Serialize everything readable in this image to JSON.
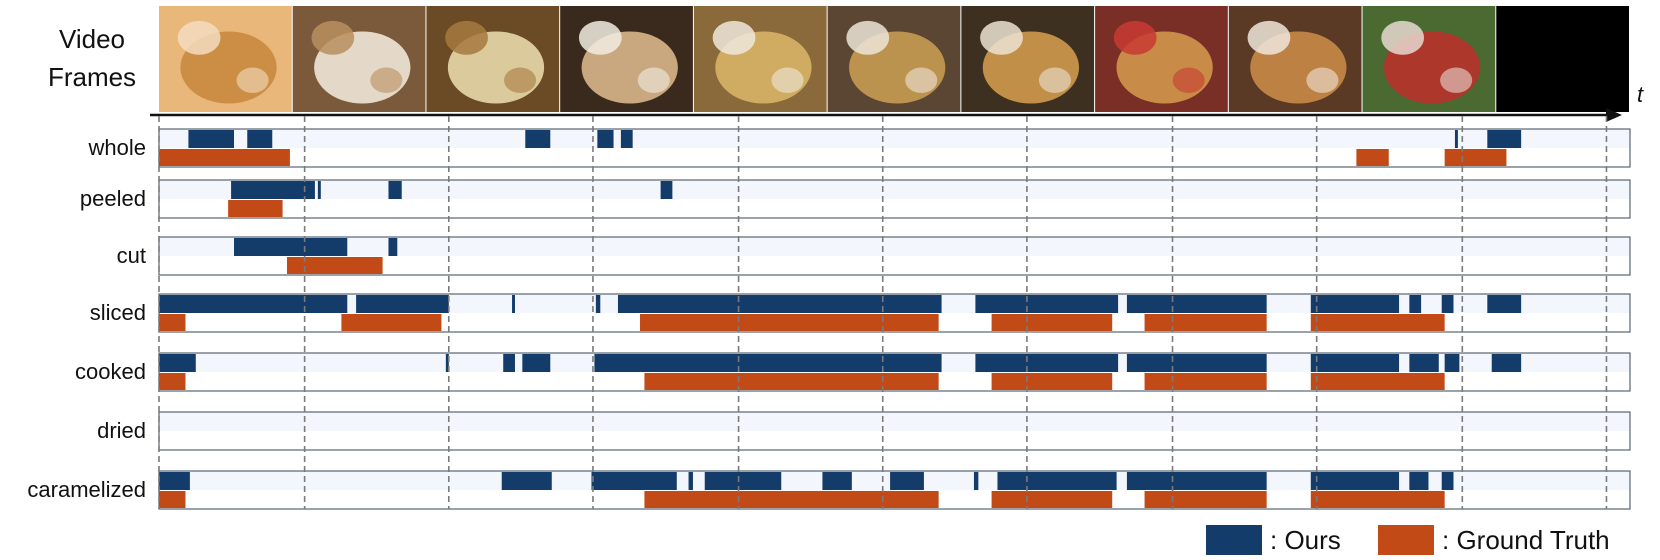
{
  "header": {
    "line1": "Video",
    "line2": "Frames",
    "time_axis": "t"
  },
  "frames": [
    {
      "colors": [
        "#e9b77a",
        "#c98a3f",
        "#f3dcc0"
      ]
    },
    {
      "colors": [
        "#7a5a3a",
        "#efe6d8",
        "#b98f5f"
      ]
    },
    {
      "colors": [
        "#6b4a26",
        "#e8d8a8",
        "#a67a3f"
      ]
    },
    {
      "colors": [
        "#3a2a1e",
        "#d9b58a",
        "#f2ece2"
      ]
    },
    {
      "colors": [
        "#8a6a3a",
        "#d7b468",
        "#efe7da"
      ]
    },
    {
      "colors": [
        "#5a4632",
        "#c79a52",
        "#ede5d8"
      ]
    },
    {
      "colors": [
        "#3e3020",
        "#cf9a4c",
        "#ece3d4"
      ]
    },
    {
      "colors": [
        "#7a2f26",
        "#d2974c",
        "#c83a32"
      ]
    },
    {
      "colors": [
        "#5a3a24",
        "#c98a48",
        "#efe6da"
      ]
    },
    {
      "colors": [
        "#4a6a32",
        "#b8322a",
        "#e8d8d0"
      ]
    },
    {
      "colors": [
        "#000000",
        "#000000",
        "#000000"
      ]
    }
  ],
  "chart_data": {
    "type": "timeline",
    "x_range": [
      0,
      1
    ],
    "series": [
      {
        "name": ": Ours",
        "color": "#143c6b"
      },
      {
        "name": ": Ground Truth",
        "color": "#c24a17"
      }
    ],
    "rows": [
      {
        "label": "whole",
        "ours": [
          [
            0.02,
            0.051
          ],
          [
            0.06,
            0.077
          ],
          [
            0.249,
            0.266
          ],
          [
            0.298,
            0.309
          ],
          [
            0.314,
            0.322
          ],
          [
            0.881,
            0.883
          ],
          [
            0.903,
            0.926
          ]
        ],
        "gt": [
          [
            0.0,
            0.089
          ],
          [
            0.814,
            0.836
          ],
          [
            0.874,
            0.916
          ]
        ]
      },
      {
        "label": "peeled",
        "ours": [
          [
            0.049,
            0.106
          ],
          [
            0.108,
            0.11
          ],
          [
            0.156,
            0.165
          ],
          [
            0.341,
            0.349
          ]
        ],
        "gt": [
          [
            0.047,
            0.084
          ]
        ]
      },
      {
        "label": "cut",
        "ours": [
          [
            0.051,
            0.128
          ],
          [
            0.156,
            0.162
          ]
        ],
        "gt": [
          [
            0.087,
            0.152
          ]
        ]
      },
      {
        "label": "sliced",
        "ours": [
          [
            0.0,
            0.128
          ],
          [
            0.134,
            0.197
          ],
          [
            0.24,
            0.242
          ],
          [
            0.297,
            0.3
          ],
          [
            0.312,
            0.532
          ],
          [
            0.555,
            0.652
          ],
          [
            0.658,
            0.753
          ],
          [
            0.783,
            0.843
          ],
          [
            0.85,
            0.858
          ],
          [
            0.872,
            0.88
          ],
          [
            0.903,
            0.926
          ]
        ],
        "gt": [
          [
            0.0,
            0.018
          ],
          [
            0.124,
            0.192
          ],
          [
            0.327,
            0.53
          ],
          [
            0.566,
            0.648
          ],
          [
            0.67,
            0.753
          ],
          [
            0.783,
            0.874
          ]
        ]
      },
      {
        "label": "cooked",
        "ours": [
          [
            0.0,
            0.025
          ],
          [
            0.195,
            0.197
          ],
          [
            0.234,
            0.242
          ],
          [
            0.247,
            0.266
          ],
          [
            0.296,
            0.532
          ],
          [
            0.555,
            0.652
          ],
          [
            0.658,
            0.753
          ],
          [
            0.783,
            0.843
          ],
          [
            0.85,
            0.87
          ],
          [
            0.874,
            0.884
          ],
          [
            0.906,
            0.926
          ]
        ],
        "gt": [
          [
            0.0,
            0.018
          ],
          [
            0.33,
            0.53
          ],
          [
            0.566,
            0.648
          ],
          [
            0.67,
            0.753
          ],
          [
            0.783,
            0.874
          ]
        ]
      },
      {
        "label": "dried",
        "ours": [],
        "gt": []
      },
      {
        "label": "caramelized",
        "ours": [
          [
            0.0,
            0.021
          ],
          [
            0.233,
            0.267
          ],
          [
            0.294,
            0.352
          ],
          [
            0.36,
            0.363
          ],
          [
            0.371,
            0.423
          ],
          [
            0.451,
            0.471
          ],
          [
            0.497,
            0.52
          ],
          [
            0.554,
            0.557
          ],
          [
            0.57,
            0.651
          ],
          [
            0.658,
            0.753
          ],
          [
            0.783,
            0.843
          ],
          [
            0.85,
            0.863
          ],
          [
            0.872,
            0.88
          ]
        ],
        "gt": [
          [
            0.0,
            0.018
          ],
          [
            0.33,
            0.53
          ],
          [
            0.566,
            0.648
          ],
          [
            0.67,
            0.753
          ],
          [
            0.783,
            0.874
          ]
        ]
      }
    ],
    "frame_boundaries": [
      0.099,
      0.197,
      0.295,
      0.394,
      0.492,
      0.59,
      0.689,
      0.787,
      0.886,
      0.984
    ],
    "legend": {
      "position": "bottom-right"
    }
  }
}
